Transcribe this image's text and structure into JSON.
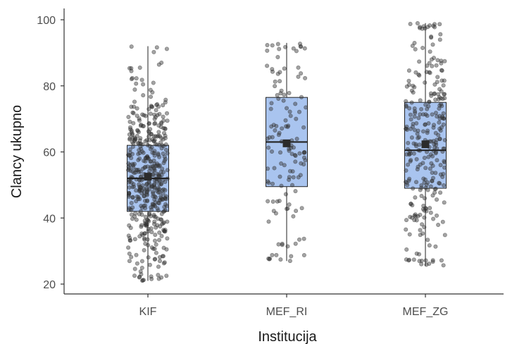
{
  "chart_data": {
    "type": "box",
    "title": "",
    "xlabel": "Institucija",
    "ylabel": "Clancy ukupno",
    "ylim": [
      20,
      100
    ],
    "yticks": [
      20,
      40,
      60,
      80,
      100
    ],
    "grid": false,
    "colors": {
      "box_fill": "#a9c4ef",
      "box_stroke": "#222222",
      "point": "#333333",
      "axis": "#333333"
    },
    "categories": [
      "KIF",
      "MEF_RI",
      "MEF_ZG"
    ],
    "boxes": [
      {
        "category": "KIF",
        "whisker_low": 21,
        "q1": 42,
        "median": 52,
        "q3": 62,
        "whisker_high": 92,
        "mean": 52.5,
        "n_points": 480
      },
      {
        "category": "MEF_RI",
        "whisker_low": 27,
        "q1": 49.5,
        "median": 63,
        "q3": 76.5,
        "whisker_high": 93,
        "mean": 62.6,
        "n_points": 130
      },
      {
        "category": "MEF_ZG",
        "whisker_low": 25.5,
        "q1": 49,
        "median": 60.5,
        "q3": 75,
        "whisker_high": 99,
        "mean": 62.3,
        "n_points": 290
      }
    ]
  }
}
